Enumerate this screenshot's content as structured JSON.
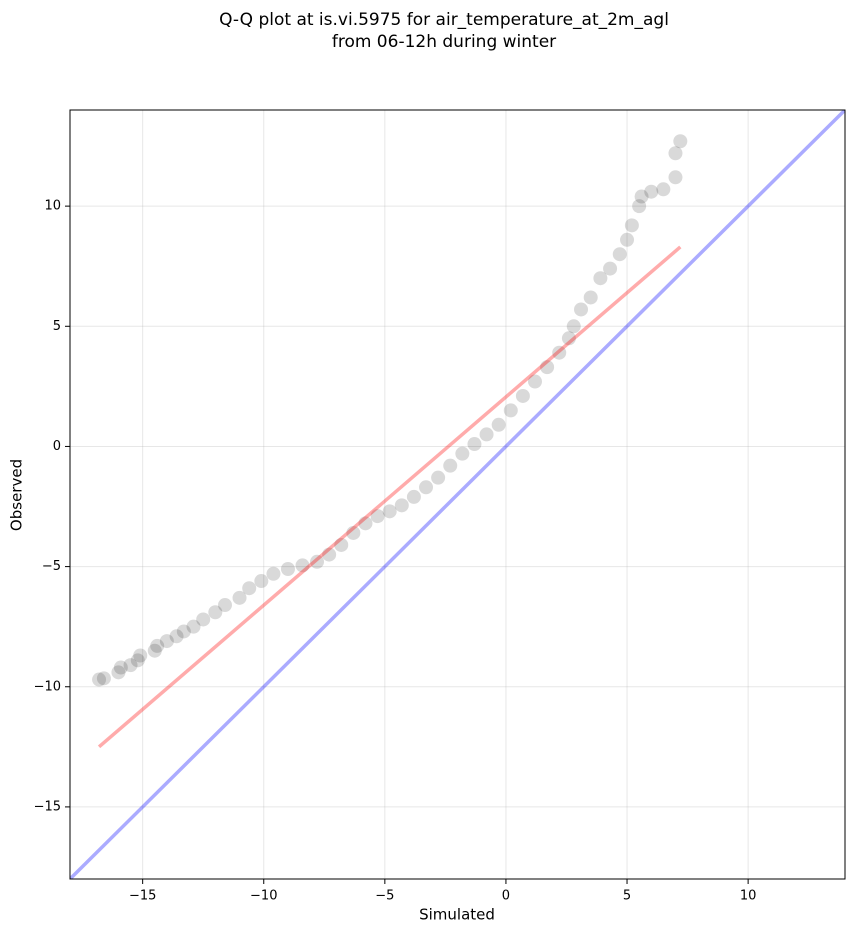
{
  "chart_data": {
    "type": "scatter",
    "title": [
      "Q-Q plot at is.vi.5975 for air_temperature_at_2m_agl",
      "from 06-12h during winter"
    ],
    "x_label": "Simulated",
    "y_label": "Observed",
    "xlim": [
      -18,
      14
    ],
    "ylim": [
      -18,
      14
    ],
    "xticks": [
      {
        "value": -15,
        "label": "−15"
      },
      {
        "value": -10,
        "label": "−10"
      },
      {
        "value": -5,
        "label": "−5"
      },
      0,
      5,
      10
    ],
    "yticks": [
      {
        "value": -15,
        "label": "−15"
      },
      {
        "value": -10,
        "label": "−10"
      },
      {
        "value": -5,
        "label": "−5"
      },
      0,
      5,
      10
    ],
    "grid": true,
    "points": {
      "color": "#000000",
      "alpha": 0.15,
      "x": [
        -16.8,
        -16.6,
        -16.0,
        -15.9,
        -15.5,
        -15.2,
        -15.1,
        -14.5,
        -14.4,
        -14.0,
        -13.6,
        -13.3,
        -12.9,
        -12.5,
        -12.0,
        -11.6,
        -11.0,
        -10.6,
        -10.1,
        -9.6,
        -9.0,
        -8.4,
        -7.8,
        -7.3,
        -6.8,
        -6.3,
        -5.8,
        -5.3,
        -4.8,
        -4.3,
        -3.8,
        -3.3,
        -2.8,
        -2.3,
        -1.8,
        -1.3,
        -0.8,
        -0.3,
        0.2,
        0.7,
        1.2,
        1.7,
        2.2,
        2.6,
        2.8,
        3.1,
        3.5,
        3.9,
        4.3,
        4.7,
        5.0,
        5.2,
        5.5,
        5.6,
        6.0,
        6.5,
        7.0,
        7.0,
        7.2
      ],
      "y": [
        -9.7,
        -9.65,
        -9.4,
        -9.2,
        -9.1,
        -8.9,
        -8.7,
        -8.5,
        -8.3,
        -8.1,
        -7.9,
        -7.7,
        -7.5,
        -7.2,
        -6.9,
        -6.6,
        -6.3,
        -5.9,
        -5.6,
        -5.3,
        -5.1,
        -4.95,
        -4.8,
        -4.5,
        -4.1,
        -3.6,
        -3.2,
        -2.9,
        -2.7,
        -2.45,
        -2.1,
        -1.7,
        -1.3,
        -0.8,
        -0.3,
        0.1,
        0.5,
        0.9,
        1.5,
        2.1,
        2.7,
        3.3,
        3.9,
        4.5,
        5.0,
        5.7,
        6.2,
        7.0,
        7.4,
        8.0,
        8.6,
        9.2,
        10.0,
        10.4,
        10.6,
        10.7,
        11.2,
        12.2,
        12.7
      ]
    },
    "lines": [
      {
        "color": "#0000ff",
        "alpha": 0.33,
        "x": [
          -18,
          14
        ],
        "y": [
          -18,
          14
        ]
      },
      {
        "color": "#ff0000",
        "alpha": 0.33,
        "x": [
          -16.8,
          7.2
        ],
        "y": [
          -12.5,
          8.3
        ]
      }
    ]
  }
}
